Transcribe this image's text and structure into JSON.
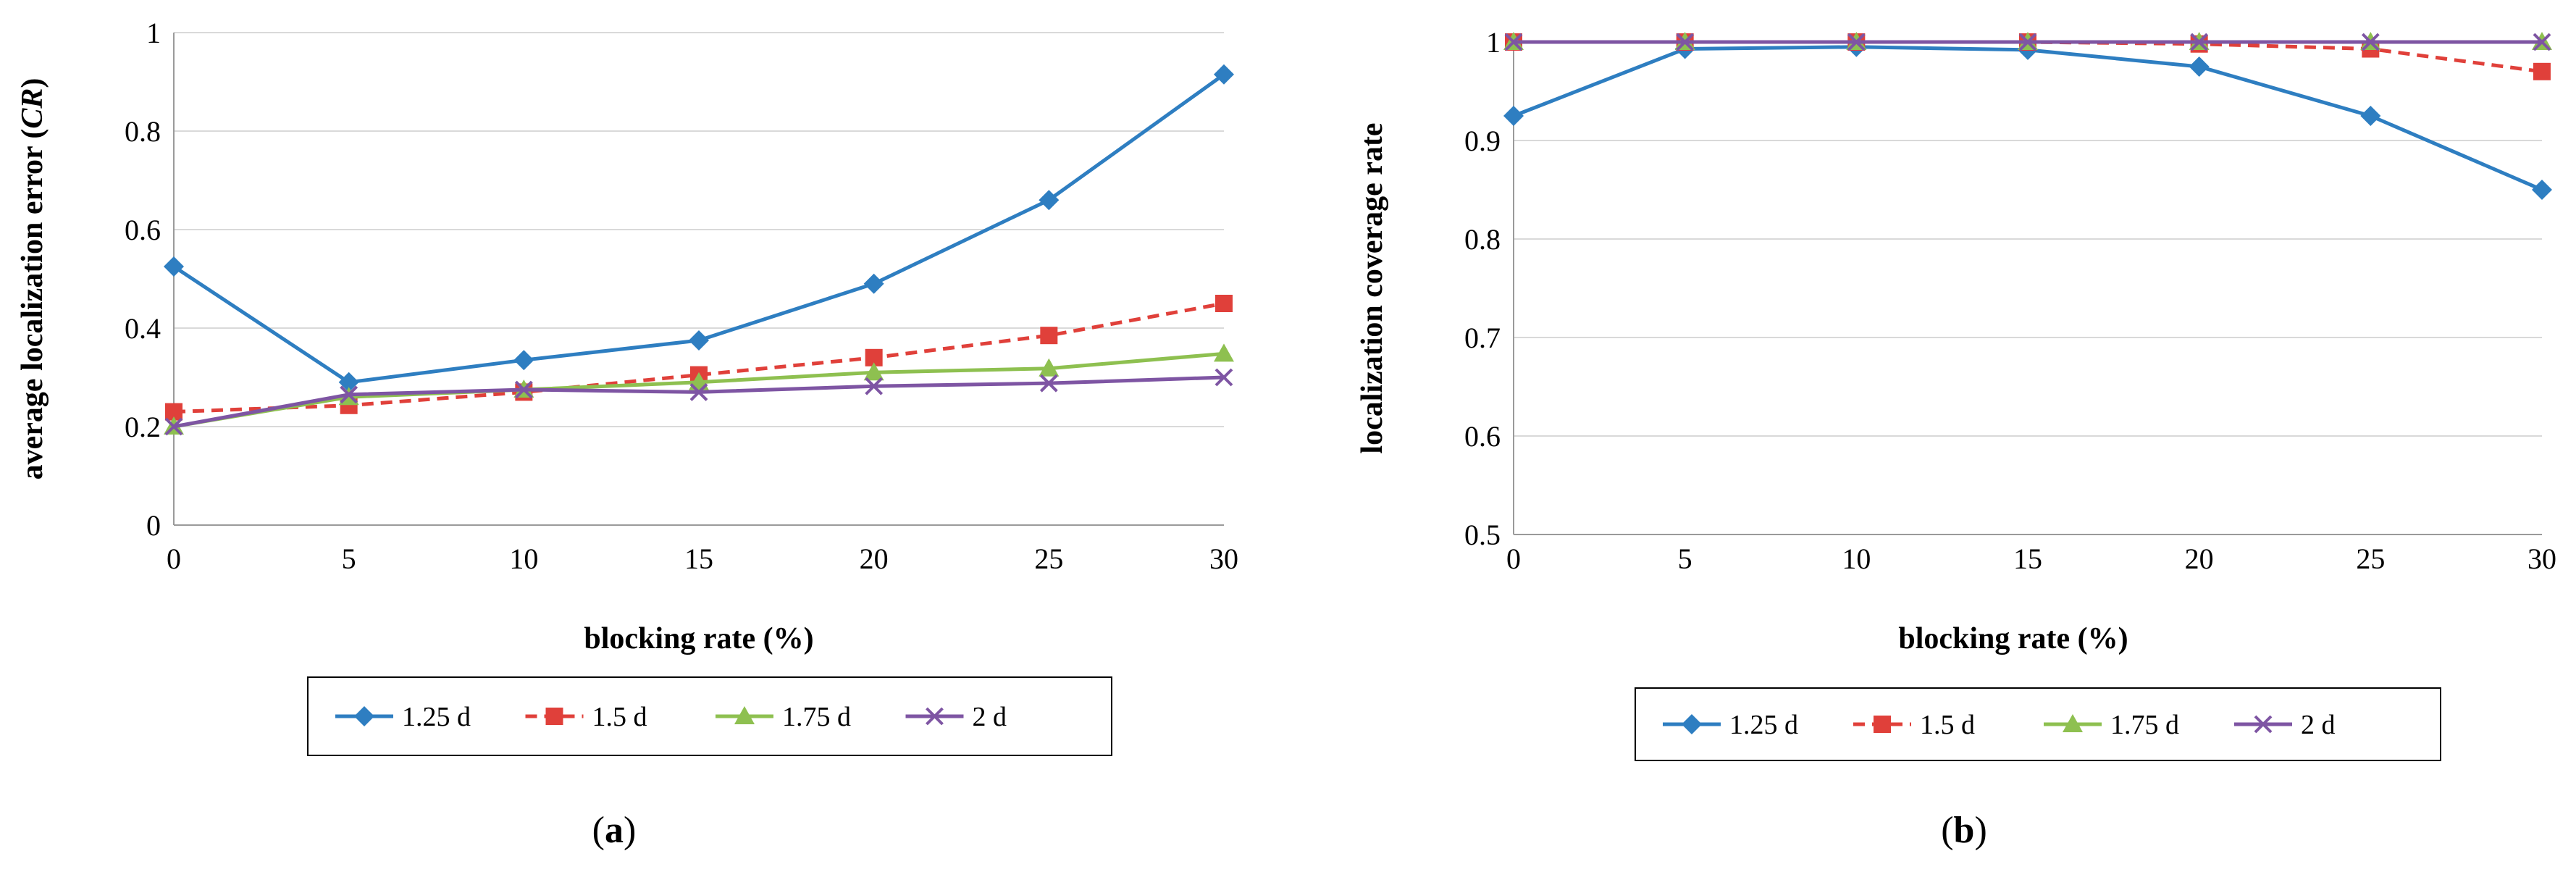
{
  "chart_data": [
    {
      "type": "line",
      "panel": "(a)",
      "panel_letter": "a",
      "xlabel": "blocking rate (%)",
      "ylabel": "average localization error (CR)",
      "ylabel_main": "average localization error (",
      "ylabel_italic": "CR",
      "ylabel_close": ")",
      "x": [
        0,
        5,
        10,
        15,
        20,
        25,
        30
      ],
      "xlim": [
        0,
        30
      ],
      "ylim": [
        0,
        1
      ],
      "yticks": [
        0,
        0.2,
        0.4,
        0.6,
        0.8,
        1
      ],
      "ytick_labels": [
        "0",
        "0.2",
        "0.4",
        "0.6",
        "0.8",
        "1"
      ],
      "grid": true,
      "legend_position": "bottom",
      "series": [
        {
          "name": "1.25 d",
          "color": "#2E7EC1",
          "marker": "diamond",
          "dash": "solid",
          "values": [
            0.525,
            0.29,
            0.335,
            0.375,
            0.49,
            0.66,
            0.915
          ]
        },
        {
          "name": "1.5 d",
          "color": "#E0403A",
          "marker": "square",
          "dash": "dashed",
          "values": [
            0.23,
            0.243,
            0.27,
            0.305,
            0.34,
            0.385,
            0.45
          ]
        },
        {
          "name": "1.75 d",
          "color": "#8EC050",
          "marker": "triangle",
          "dash": "solid",
          "values": [
            0.2,
            0.26,
            0.275,
            0.29,
            0.31,
            0.318,
            0.348
          ]
        },
        {
          "name": "2 d",
          "color": "#7E55A3",
          "marker": "x",
          "dash": "solid",
          "values": [
            0.2,
            0.265,
            0.275,
            0.27,
            0.282,
            0.288,
            0.3
          ]
        }
      ]
    },
    {
      "type": "line",
      "panel": "(b)",
      "panel_letter": "b",
      "xlabel": "blocking rate (%)",
      "ylabel": "localization coverage rate",
      "x": [
        0,
        5,
        10,
        15,
        20,
        25,
        30
      ],
      "xlim": [
        0,
        30
      ],
      "ylim": [
        0.5,
        1
      ],
      "yticks": [
        0.5,
        0.6,
        0.7,
        0.8,
        0.9,
        1
      ],
      "ytick_labels": [
        "0.5",
        "0.6",
        "0.7",
        "0.8",
        "0.9",
        "1"
      ],
      "grid": true,
      "legend_position": "bottom",
      "series": [
        {
          "name": "1.25 d",
          "color": "#2E7EC1",
          "marker": "diamond",
          "dash": "solid",
          "values": [
            0.925,
            0.993,
            0.995,
            0.992,
            0.975,
            0.925,
            0.85
          ]
        },
        {
          "name": "1.5 d",
          "color": "#E0403A",
          "marker": "square",
          "dash": "dashed",
          "values": [
            1,
            1,
            1,
            1,
            0.998,
            0.993,
            0.97
          ]
        },
        {
          "name": "1.75 d",
          "color": "#8EC050",
          "marker": "triangle",
          "dash": "solid",
          "values": [
            1,
            1,
            1,
            1,
            1,
            1,
            1
          ]
        },
        {
          "name": "2 d",
          "color": "#7E55A3",
          "marker": "x",
          "dash": "solid",
          "values": [
            1,
            1,
            1,
            1,
            1,
            1,
            1
          ]
        }
      ]
    }
  ]
}
